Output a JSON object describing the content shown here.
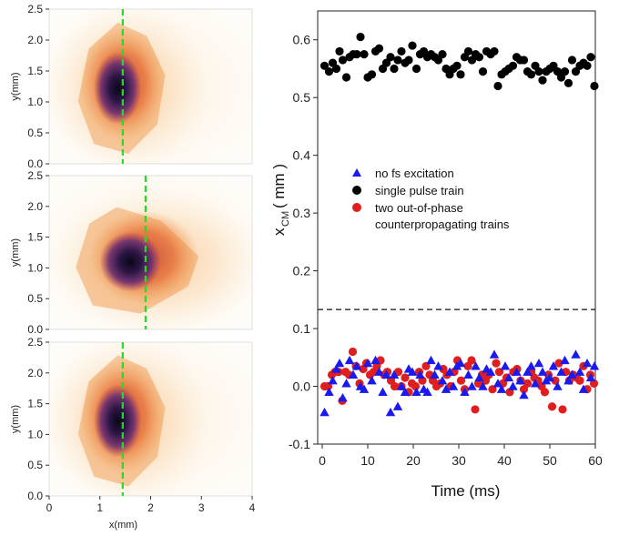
{
  "chart_data": [
    {
      "type": "heatmap",
      "panel": "top",
      "xlim": [
        0,
        4
      ],
      "ylim": [
        0,
        2.5
      ],
      "x_ticks": [],
      "y_ticks": [
        "0.0",
        "0.5",
        "1.0",
        "1.5",
        "2.0",
        "2.5"
      ],
      "xlabel": "",
      "ylabel": "y(mm)",
      "blob_center": [
        1.35,
        1.22
      ],
      "dashed_line_x": 1.45,
      "dashed_line_color": "#22dd22"
    },
    {
      "type": "heatmap",
      "panel": "middle",
      "xlim": [
        0,
        4
      ],
      "ylim": [
        0,
        2.5
      ],
      "x_ticks": [],
      "y_ticks": [
        "0.0",
        "0.5",
        "1.0",
        "1.5",
        "2.0",
        "2.5"
      ],
      "xlabel": "",
      "ylabel": "y(mm)",
      "blob_center": [
        1.6,
        1.1
      ],
      "dashed_line_x": 1.9,
      "dashed_line_color": "#22dd22"
    },
    {
      "type": "heatmap",
      "panel": "bottom",
      "xlim": [
        0,
        4
      ],
      "ylim": [
        0,
        2.5
      ],
      "x_ticks": [
        "0",
        "1",
        "2",
        "3",
        "4"
      ],
      "y_ticks": [
        "0.0",
        "0.5",
        "1.0",
        "1.5",
        "2.0",
        "2.5"
      ],
      "xlabel": "x(mm)",
      "ylabel": "y(mm)",
      "blob_center": [
        1.35,
        1.22
      ],
      "dashed_line_x": 1.45,
      "dashed_line_color": "#22dd22"
    },
    {
      "type": "scatter",
      "xlabel": "Time (ms)",
      "ylabel": "x",
      "ylabel_sub": "CM",
      "ylabel_unit": "( mm )",
      "xlim": [
        -1,
        60
      ],
      "ylim": [
        -0.1,
        0.65
      ],
      "x_ticks": [
        "0",
        "10",
        "20",
        "30",
        "40",
        "50",
        "60"
      ],
      "y_ticks": [
        "-0.1",
        "0.0",
        "0.1",
        "0.2",
        "0.3",
        "0.4",
        "0.5",
        "0.6"
      ],
      "reference_line_y": 0.133,
      "series": [
        {
          "name": "no fs excitation",
          "marker": "triangle",
          "color": "#1a1aee",
          "x": [
            0.5,
            1.5,
            2.3,
            3.1,
            3.8,
            4.5,
            5.3,
            6.0,
            6.8,
            7.6,
            8.4,
            9.2,
            10.0,
            10.9,
            11.7,
            12.5,
            13.3,
            14.1,
            15.0,
            15.8,
            16.6,
            17.4,
            18.2,
            19.0,
            19.8,
            20.7,
            21.5,
            22.3,
            23.1,
            23.9,
            24.7,
            25.5,
            26.4,
            27.2,
            28.0,
            28.8,
            29.6,
            30.4,
            31.3,
            32.1,
            32.9,
            33.7,
            34.5,
            35.3,
            36.1,
            37.0,
            37.8,
            38.6,
            39.4,
            40.2,
            41.0,
            41.9,
            42.7,
            43.5,
            44.3,
            45.1,
            45.9,
            46.8,
            47.6,
            48.4,
            49.2,
            50.0,
            50.8,
            51.7,
            52.5,
            53.3,
            54.1,
            54.9,
            55.7,
            56.6,
            57.4,
            58.2,
            59.0,
            59.8
          ],
          "y": [
            -0.045,
            -0.01,
            0.01,
            0.03,
            0.04,
            -0.02,
            0.005,
            0.045,
            0.02,
            0.035,
            0.0,
            -0.005,
            0.04,
            0.01,
            0.045,
            0.025,
            -0.01,
            0.02,
            -0.045,
            0.02,
            -0.035,
            0.0,
            -0.01,
            0.03,
            0.025,
            -0.01,
            0.02,
            -0.005,
            -0.01,
            0.045,
            0.02,
            0.035,
            0.01,
            -0.005,
            0.025,
            0.0,
            0.035,
            0.04,
            -0.01,
            0.02,
            0.0,
            0.035,
            0.015,
            0.0,
            0.03,
            0.025,
            0.055,
            0.005,
            -0.005,
            0.035,
            0.015,
            0.0,
            0.025,
            0.01,
            -0.015,
            0.025,
            0.035,
            0.005,
            0.04,
            0.025,
            0.01,
            0.015,
            0.035,
            0.0,
            0.025,
            0.045,
            0.01,
            0.02,
            0.055,
            0.025,
            -0.005,
            0.04,
            0.015,
            0.035
          ]
        },
        {
          "name": "single pulse train",
          "marker": "circle",
          "color": "#000000",
          "x": [
            0.5,
            1.5,
            2.3,
            3.1,
            3.8,
            4.5,
            5.3,
            6.0,
            6.8,
            7.6,
            8.4,
            9.2,
            10.0,
            10.9,
            11.7,
            12.5,
            13.3,
            14.1,
            15.0,
            15.8,
            16.6,
            17.4,
            18.2,
            19.0,
            19.8,
            20.7,
            21.5,
            22.3,
            23.1,
            23.9,
            24.7,
            25.5,
            26.4,
            27.2,
            28.0,
            28.8,
            29.6,
            30.4,
            31.3,
            32.1,
            32.9,
            33.7,
            34.5,
            35.3,
            36.1,
            37.0,
            37.8,
            38.6,
            39.4,
            40.2,
            41.0,
            41.9,
            42.7,
            43.5,
            44.3,
            45.1,
            45.9,
            46.8,
            47.6,
            48.4,
            49.2,
            50.0,
            50.8,
            51.7,
            52.5,
            53.3,
            54.1,
            54.9,
            55.7,
            56.6,
            57.4,
            58.2,
            59.0,
            59.8
          ],
          "y": [
            0.555,
            0.545,
            0.56,
            0.55,
            0.58,
            0.565,
            0.535,
            0.57,
            0.575,
            0.575,
            0.605,
            0.575,
            0.535,
            0.54,
            0.58,
            0.585,
            0.55,
            0.56,
            0.57,
            0.55,
            0.565,
            0.58,
            0.56,
            0.565,
            0.59,
            0.55,
            0.575,
            0.58,
            0.57,
            0.575,
            0.57,
            0.565,
            0.575,
            0.55,
            0.54,
            0.55,
            0.555,
            0.54,
            0.57,
            0.58,
            0.565,
            0.575,
            0.57,
            0.545,
            0.58,
            0.575,
            0.58,
            0.52,
            0.54,
            0.545,
            0.55,
            0.555,
            0.57,
            0.565,
            0.565,
            0.545,
            0.54,
            0.555,
            0.545,
            0.53,
            0.545,
            0.55,
            0.555,
            0.545,
            0.535,
            0.545,
            0.525,
            0.565,
            0.545,
            0.555,
            0.56,
            0.555,
            0.57,
            0.52
          ]
        },
        {
          "name": "two out-of-phase counterpropagating trains",
          "name_line1": "two out-of-phase",
          "name_line2": "counterpropagating trains",
          "marker": "circle",
          "color": "#e01e1e",
          "x": [
            0.5,
            1.3,
            2.1,
            2.8,
            3.6,
            4.4,
            5.1,
            5.9,
            6.7,
            7.4,
            8.2,
            9.0,
            9.7,
            10.5,
            11.3,
            12.0,
            12.8,
            13.6,
            14.3,
            15.1,
            15.9,
            16.7,
            17.4,
            18.2,
            19.0,
            19.7,
            20.5,
            21.3,
            22.0,
            22.8,
            23.6,
            24.3,
            25.1,
            25.9,
            26.6,
            27.4,
            28.2,
            29.0,
            29.7,
            30.5,
            31.3,
            32.0,
            32.8,
            33.6,
            34.3,
            35.1,
            35.9,
            36.6,
            37.4,
            38.2,
            38.9,
            39.7,
            40.5,
            41.2,
            42.0,
            42.8,
            43.6,
            44.3,
            45.1,
            45.9,
            46.6,
            47.4,
            48.2,
            48.9,
            49.7,
            50.5,
            51.2,
            52.0,
            52.8,
            53.5,
            54.3,
            55.1,
            55.9,
            56.6,
            57.4,
            58.2,
            58.9,
            59.7
          ],
          "y": [
            0.0,
            0.0,
            0.02,
            0.025,
            0.025,
            -0.025,
            0.025,
            0.02,
            0.06,
            0.035,
            0.005,
            0.03,
            0.04,
            0.02,
            0.025,
            0.035,
            0.045,
            0.02,
            0.025,
            0.01,
            0.0,
            0.025,
            0.0,
            0.015,
            -0.01,
            0.005,
            0.0,
            0.025,
            0.01,
            0.035,
            0.02,
            0.01,
            0.0,
            0.005,
            0.03,
            0.02,
            0.0,
            0.025,
            0.045,
            0.01,
            -0.005,
            0.035,
            0.045,
            -0.04,
            0.005,
            0.02,
            0.01,
            0.02,
            -0.005,
            0.04,
            0.025,
            0.005,
            0.015,
            -0.01,
            0.025,
            0.03,
            0.01,
            -0.005,
            0.005,
            0.025,
            0.015,
            0.01,
            0.0,
            -0.01,
            0.02,
            -0.035,
            0.01,
            0.04,
            -0.04,
            0.025,
            0.01,
            0.02,
            0.015,
            0.01,
            0.035,
            -0.005,
            0.02,
            0.005
          ]
        }
      ]
    }
  ]
}
